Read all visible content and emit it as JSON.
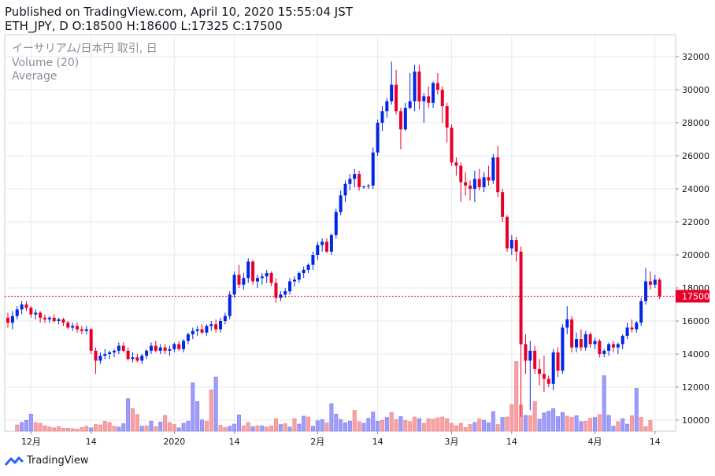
{
  "header": {
    "line1": "Published on TradingView.com, April 10, 2020 15:55:04 JST",
    "line2": "ETH_JPY, D O:18500 H:18600 L:17325 C:17500"
  },
  "legend": {
    "symbol": "イーサリアム/日本円 取引, 日",
    "volume": "Volume (20)",
    "average": "Average"
  },
  "brand": "TradingView",
  "colors": {
    "up": "#0026e6",
    "down": "#e8002a",
    "up_vol": "#9d9cf8",
    "down_vol": "#f7a1a4",
    "grid": "#e7eaef",
    "last": "#e8002a"
  },
  "chart_data": {
    "type": "candlestick",
    "xlabel": "",
    "ylabel": "",
    "ylim": [
      9000,
      32600
    ],
    "yticks": [
      10000,
      12000,
      14000,
      16000,
      18000,
      20000,
      22000,
      24000,
      26000,
      28000,
      30000,
      32000
    ],
    "ytick_labels": [
      "10000",
      "12000",
      "14000",
      "16000",
      "18000",
      "20000",
      "22000",
      "24000",
      "26000",
      "28000",
      "30000",
      "32000"
    ],
    "x_tick_labels": [
      {
        "bar": 5,
        "label": "12月"
      },
      {
        "bar": 18,
        "label": "14"
      },
      {
        "bar": 36,
        "label": "2020"
      },
      {
        "bar": 49,
        "label": "14"
      },
      {
        "bar": 67,
        "label": "2月"
      },
      {
        "bar": 80,
        "label": "14"
      },
      {
        "bar": 96,
        "label": "3月"
      },
      {
        "bar": 109,
        "label": "14"
      },
      {
        "bar": 127,
        "label": "4月"
      },
      {
        "bar": 140,
        "label": "14"
      }
    ],
    "last_price": 17500,
    "last_price_label": "17500",
    "ohlc": [
      [
        16200,
        16500,
        15600,
        15900
      ],
      [
        15900,
        16600,
        15500,
        16300
      ],
      [
        16300,
        16900,
        16100,
        16700
      ],
      [
        16700,
        17200,
        16400,
        17000
      ],
      [
        17000,
        17200,
        16600,
        16800
      ],
      [
        16800,
        16900,
        16200,
        16400
      ],
      [
        16400,
        16700,
        16100,
        16500
      ],
      [
        16500,
        16600,
        15900,
        16200
      ],
      [
        16200,
        16400,
        15900,
        16100
      ],
      [
        16100,
        16300,
        15900,
        16200
      ],
      [
        16200,
        16400,
        15900,
        16000
      ],
      [
        16000,
        16200,
        15800,
        16100
      ],
      [
        16100,
        16200,
        15700,
        15900
      ],
      [
        15900,
        16000,
        15500,
        15600
      ],
      [
        15600,
        15900,
        15400,
        15700
      ],
      [
        15700,
        15900,
        15300,
        15500
      ],
      [
        15500,
        15700,
        15200,
        15400
      ],
      [
        15400,
        15700,
        15200,
        15500
      ],
      [
        15500,
        15600,
        14000,
        14200
      ],
      [
        14200,
        14400,
        12800,
        13600
      ],
      [
        13600,
        14100,
        13400,
        13900
      ],
      [
        13900,
        14300,
        13700,
        14000
      ],
      [
        14000,
        14200,
        13700,
        14100
      ],
      [
        14100,
        14300,
        13800,
        14200
      ],
      [
        14200,
        14700,
        14000,
        14500
      ],
      [
        14500,
        14700,
        14100,
        14200
      ],
      [
        14200,
        14400,
        13600,
        13700
      ],
      [
        13700,
        14100,
        13500,
        13800
      ],
      [
        13800,
        14000,
        13500,
        13600
      ],
      [
        13600,
        14000,
        13400,
        13900
      ],
      [
        13900,
        14300,
        13700,
        14200
      ],
      [
        14200,
        14700,
        14000,
        14500
      ],
      [
        14500,
        14800,
        14100,
        14200
      ],
      [
        14200,
        14600,
        14000,
        14400
      ],
      [
        14400,
        14600,
        14000,
        14200
      ],
      [
        14200,
        14500,
        13900,
        14300
      ],
      [
        14300,
        14700,
        14100,
        14600
      ],
      [
        14600,
        14800,
        14200,
        14300
      ],
      [
        14300,
        14900,
        14100,
        14800
      ],
      [
        14800,
        15300,
        14600,
        15200
      ],
      [
        15200,
        15600,
        14900,
        15400
      ],
      [
        15400,
        15700,
        15100,
        15500
      ],
      [
        15500,
        15800,
        15200,
        15300
      ],
      [
        15300,
        15800,
        15100,
        15700
      ],
      [
        15700,
        16000,
        15400,
        15800
      ],
      [
        15800,
        16100,
        15300,
        15500
      ],
      [
        15500,
        16200,
        15300,
        16000
      ],
      [
        16000,
        16500,
        15800,
        16300
      ],
      [
        16300,
        17800,
        16100,
        17600
      ],
      [
        17600,
        19000,
        17400,
        18800
      ],
      [
        18800,
        19400,
        18000,
        18200
      ],
      [
        18200,
        18900,
        17900,
        18600
      ],
      [
        18600,
        19800,
        18300,
        19600
      ],
      [
        19600,
        19700,
        18200,
        18400
      ],
      [
        18400,
        18800,
        18000,
        18600
      ],
      [
        18600,
        18900,
        18200,
        18700
      ],
      [
        18700,
        19100,
        18300,
        18900
      ],
      [
        18900,
        19000,
        18100,
        18300
      ],
      [
        18300,
        18600,
        17100,
        17400
      ],
      [
        17400,
        17800,
        17200,
        17600
      ],
      [
        17600,
        18000,
        17400,
        17800
      ],
      [
        17800,
        18600,
        17600,
        18400
      ],
      [
        18400,
        18700,
        18100,
        18500
      ],
      [
        18500,
        19000,
        18300,
        18900
      ],
      [
        18900,
        19300,
        18600,
        19100
      ],
      [
        19100,
        19500,
        18900,
        19400
      ],
      [
        19400,
        20200,
        19100,
        20000
      ],
      [
        20000,
        20800,
        19700,
        20600
      ],
      [
        20600,
        21000,
        20200,
        20800
      ],
      [
        20800,
        21000,
        20100,
        20200
      ],
      [
        20200,
        21300,
        20000,
        21200
      ],
      [
        21200,
        22800,
        21000,
        22600
      ],
      [
        22600,
        23900,
        22400,
        23600
      ],
      [
        23600,
        24500,
        23200,
        24300
      ],
      [
        24300,
        24900,
        23900,
        24600
      ],
      [
        24600,
        25200,
        24100,
        24900
      ],
      [
        24900,
        25100,
        23900,
        24100
      ],
      [
        24100,
        24200,
        24000,
        24150
      ],
      [
        24150,
        24300,
        24000,
        24200
      ],
      [
        24200,
        26500,
        24000,
        26200
      ],
      [
        26200,
        28200,
        26000,
        28000
      ],
      [
        28000,
        29000,
        27500,
        28700
      ],
      [
        28700,
        29500,
        28300,
        29300
      ],
      [
        29300,
        31700,
        29100,
        30300
      ],
      [
        30300,
        31200,
        28500,
        28700
      ],
      [
        28700,
        28900,
        26400,
        27600
      ],
      [
        27600,
        29200,
        27500,
        28900
      ],
      [
        28900,
        31000,
        28800,
        29300
      ],
      [
        29300,
        31500,
        28700,
        31100
      ],
      [
        31100,
        31500,
        28800,
        29300
      ],
      [
        29300,
        29800,
        28000,
        29600
      ],
      [
        29600,
        30200,
        28900,
        29200
      ],
      [
        29200,
        30500,
        28900,
        30400
      ],
      [
        30400,
        31000,
        29700,
        30000
      ],
      [
        30000,
        30200,
        28000,
        29000
      ],
      [
        29000,
        29200,
        26800,
        27700
      ],
      [
        27700,
        27900,
        25400,
        25600
      ],
      [
        25600,
        25900,
        24800,
        25400
      ],
      [
        25400,
        25600,
        23200,
        24400
      ],
      [
        24400,
        25000,
        23600,
        24200
      ],
      [
        24200,
        24500,
        23300,
        24000
      ],
      [
        24000,
        25100,
        23200,
        24600
      ],
      [
        24600,
        25200,
        23900,
        24100
      ],
      [
        24100,
        25000,
        23800,
        24700
      ],
      [
        24700,
        25400,
        24200,
        24500
      ],
      [
        24500,
        26100,
        24300,
        25900
      ],
      [
        25900,
        26600,
        23500,
        23800
      ],
      [
        23800,
        24000,
        22000,
        22300
      ],
      [
        22300,
        22400,
        20200,
        20400
      ],
      [
        20400,
        21200,
        20000,
        20900
      ],
      [
        20900,
        21100,
        19600,
        20200
      ],
      [
        20200,
        20500,
        10200,
        14600
      ],
      [
        14600,
        15200,
        12800,
        13600
      ],
      [
        13600,
        14800,
        10600,
        14200
      ],
      [
        14200,
        14500,
        12800,
        13100
      ],
      [
        13100,
        13700,
        12100,
        12800
      ],
      [
        12800,
        13900,
        11700,
        12500
      ],
      [
        12500,
        12700,
        12000,
        12200
      ],
      [
        12200,
        14300,
        11800,
        14100
      ],
      [
        14100,
        14400,
        12600,
        13000
      ],
      [
        13000,
        15800,
        12800,
        15600
      ],
      [
        15600,
        16900,
        15200,
        16100
      ],
      [
        16100,
        16300,
        14100,
        14400
      ],
      [
        14400,
        15300,
        14100,
        14900
      ],
      [
        14900,
        15500,
        14200,
        14400
      ],
      [
        14400,
        15400,
        14200,
        15200
      ],
      [
        15200,
        15300,
        14400,
        14600
      ],
      [
        14600,
        15000,
        14300,
        14800
      ],
      [
        14800,
        14900,
        13800,
        14000
      ],
      [
        14000,
        14300,
        13800,
        14200
      ],
      [
        14200,
        14700,
        13900,
        14600
      ],
      [
        14600,
        14800,
        14100,
        14400
      ],
      [
        14400,
        14700,
        14000,
        14600
      ],
      [
        14600,
        15200,
        14300,
        15100
      ],
      [
        15100,
        15900,
        14900,
        15600
      ],
      [
        15600,
        16100,
        15300,
        15500
      ],
      [
        15500,
        16000,
        15300,
        15900
      ],
      [
        15900,
        17400,
        15700,
        17200
      ],
      [
        17200,
        19200,
        17000,
        18400
      ],
      [
        18400,
        19000,
        17900,
        18200
      ],
      [
        18200,
        18800,
        18000,
        18500
      ],
      [
        18500,
        18600,
        17325,
        17500
      ]
    ],
    "volume": [
      [
        2,
        1.5,
        0
      ],
      [
        3,
        2.1,
        1
      ],
      [
        4,
        2.6,
        1
      ],
      [
        5,
        4.1,
        1
      ],
      [
        6,
        2.1,
        0
      ],
      [
        7,
        1.9,
        0
      ],
      [
        8,
        1.3,
        0
      ],
      [
        9,
        1.0,
        0
      ],
      [
        10,
        0.8,
        0
      ],
      [
        11,
        1.1,
        0
      ],
      [
        12,
        0.7,
        0
      ],
      [
        13,
        0.7,
        0
      ],
      [
        14,
        0.6,
        0
      ],
      [
        15,
        0.5,
        0
      ],
      [
        16,
        0.9,
        0
      ],
      [
        17,
        1.2,
        0
      ],
      [
        18,
        0.8,
        1
      ],
      [
        19,
        1.6,
        0
      ],
      [
        20,
        1.5,
        0
      ],
      [
        21,
        2.4,
        0
      ],
      [
        22,
        2.1,
        0
      ],
      [
        23,
        1.2,
        0
      ],
      [
        24,
        1.0,
        1
      ],
      [
        25,
        1.8,
        1
      ],
      [
        26,
        7.8,
        1
      ],
      [
        27,
        5.4,
        0
      ],
      [
        28,
        4.0,
        0
      ],
      [
        29,
        1.2,
        1
      ],
      [
        30,
        1.3,
        0
      ],
      [
        31,
        2.4,
        1
      ],
      [
        32,
        1.1,
        0
      ],
      [
        33,
        2.2,
        1
      ],
      [
        34,
        3.8,
        0
      ],
      [
        35,
        2.1,
        0
      ],
      [
        36,
        1.6,
        0
      ],
      [
        37,
        0.8,
        1
      ],
      [
        38,
        1.9,
        1
      ],
      [
        39,
        2.4,
        1
      ],
      [
        40,
        11.6,
        1
      ],
      [
        41,
        7.1,
        1
      ],
      [
        42,
        2.7,
        1
      ],
      [
        43,
        2.4,
        0
      ],
      [
        44,
        9.9,
        0
      ],
      [
        45,
        13.0,
        1
      ],
      [
        46,
        1.4,
        0
      ],
      [
        47,
        0.9,
        0
      ],
      [
        48,
        1.2,
        1
      ],
      [
        49,
        1.7,
        1
      ],
      [
        50,
        3.9,
        1
      ],
      [
        51,
        1.3,
        0
      ],
      [
        52,
        2.1,
        0
      ],
      [
        53,
        1.1,
        1
      ],
      [
        54,
        1.3,
        0
      ],
      [
        55,
        1.3,
        1
      ],
      [
        56,
        1.0,
        0
      ],
      [
        57,
        1.3,
        0
      ],
      [
        58,
        3.0,
        0
      ],
      [
        59,
        1.6,
        1
      ],
      [
        60,
        1.8,
        0
      ],
      [
        61,
        1.0,
        1
      ],
      [
        62,
        3.0,
        0
      ],
      [
        63,
        1.7,
        1
      ],
      [
        64,
        3.6,
        1
      ],
      [
        65,
        3.4,
        0
      ],
      [
        66,
        1.2,
        1
      ],
      [
        67,
        2.5,
        1
      ],
      [
        68,
        2.8,
        1
      ],
      [
        69,
        2.0,
        0
      ],
      [
        70,
        6.6,
        1
      ],
      [
        71,
        4.1,
        1
      ],
      [
        72,
        2.8,
        1
      ],
      [
        73,
        2.0,
        1
      ],
      [
        74,
        2.4,
        1
      ],
      [
        75,
        5.0,
        0
      ],
      [
        76,
        2.3,
        0
      ],
      [
        77,
        1.9,
        1
      ],
      [
        78,
        3.1,
        1
      ],
      [
        79,
        4.6,
        1
      ],
      [
        80,
        2.4,
        1
      ],
      [
        81,
        2.6,
        0
      ],
      [
        82,
        3.3,
        1
      ],
      [
        83,
        4.5,
        0
      ],
      [
        84,
        2.8,
        0
      ],
      [
        85,
        3.5,
        1
      ],
      [
        86,
        2.6,
        0
      ],
      [
        87,
        2.3,
        0
      ],
      [
        88,
        3.4,
        0
      ],
      [
        89,
        3.0,
        1
      ],
      [
        90,
        1.9,
        0
      ],
      [
        91,
        3.0,
        0
      ],
      [
        92,
        2.9,
        0
      ],
      [
        93,
        3.2,
        0
      ],
      [
        94,
        3.4,
        0
      ],
      [
        95,
        3.0,
        0
      ],
      [
        96,
        1.9,
        0
      ],
      [
        97,
        1.3,
        0
      ],
      [
        98,
        1.9,
        0
      ],
      [
        99,
        0.9,
        0
      ],
      [
        100,
        1.6,
        0
      ],
      [
        101,
        2.1,
        1
      ],
      [
        102,
        3.0,
        0
      ],
      [
        103,
        2.6,
        1
      ],
      [
        104,
        2.0,
        1
      ],
      [
        105,
        4.7,
        1
      ],
      [
        106,
        1.6,
        0
      ],
      [
        107,
        3.3,
        1
      ],
      [
        108,
        3.4,
        0
      ],
      [
        109,
        6.4,
        0
      ],
      [
        110,
        16.7,
        0
      ],
      [
        111,
        6.3,
        0
      ],
      [
        112,
        3.8,
        1
      ],
      [
        113,
        3.7,
        0
      ],
      [
        114,
        7.1,
        0
      ],
      [
        115,
        2.9,
        1
      ],
      [
        116,
        4.4,
        1
      ],
      [
        117,
        4.8,
        1
      ],
      [
        118,
        5.4,
        1
      ],
      [
        119,
        3.5,
        1
      ],
      [
        120,
        4.5,
        1
      ],
      [
        121,
        3.6,
        0
      ],
      [
        122,
        3.3,
        0
      ],
      [
        123,
        3.7,
        1
      ],
      [
        124,
        2.3,
        1
      ],
      [
        125,
        2.4,
        0
      ],
      [
        126,
        3.1,
        0
      ],
      [
        127,
        3.3,
        1
      ],
      [
        128,
        4.0,
        0
      ],
      [
        129,
        13.3,
        1
      ],
      [
        130,
        3.8,
        1
      ],
      [
        131,
        1.2,
        1
      ],
      [
        132,
        2.3,
        0
      ],
      [
        133,
        3.0,
        1
      ],
      [
        134,
        1.7,
        1
      ],
      [
        135,
        3.7,
        0
      ],
      [
        136,
        10.3,
        1
      ],
      [
        137,
        3.3,
        0
      ],
      [
        138,
        1.1,
        0
      ],
      [
        139,
        2.6,
        0
      ]
    ]
  }
}
